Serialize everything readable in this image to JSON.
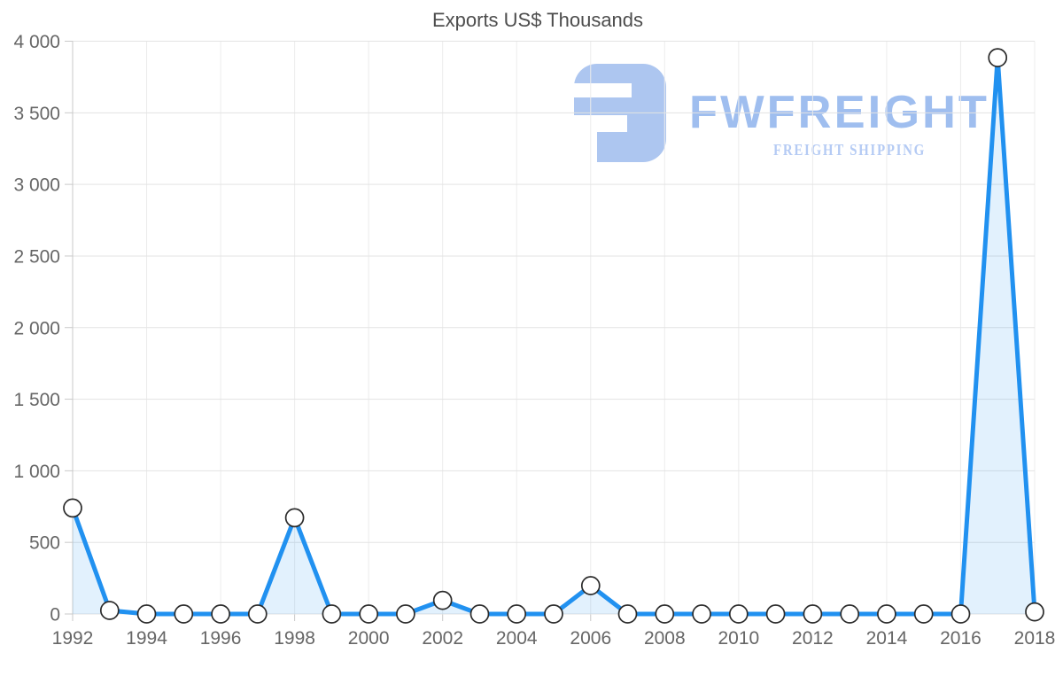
{
  "watermark": {
    "brand": "FWFREIGHT",
    "tagline": "FREIGHT SHIPPING",
    "glyph_color": "#adc6f0",
    "brand_color": "#9fbeef",
    "tagline_color": "#b5cbf4"
  },
  "chart_data": {
    "type": "area",
    "title": "Exports US$ Thousands",
    "xlabel": "",
    "ylabel": "",
    "x_range": [
      1992,
      2018
    ],
    "y_range": [
      0,
      4000
    ],
    "grid": true,
    "legend": "none",
    "x": [
      1992,
      1993,
      1994,
      1995,
      1996,
      1997,
      1998,
      1999,
      2000,
      2001,
      2002,
      2003,
      2004,
      2005,
      2006,
      2007,
      2008,
      2009,
      2010,
      2011,
      2012,
      2013,
      2014,
      2015,
      2016,
      2017,
      2018
    ],
    "values": [
      740,
      25,
      0,
      0,
      0,
      0,
      672,
      0,
      0,
      0,
      95,
      0,
      0,
      0,
      198,
      0,
      0,
      0,
      0,
      0,
      0,
      0,
      0,
      0,
      0,
      3885,
      15
    ],
    "x_tick_years": [
      1992,
      1994,
      1996,
      1998,
      2000,
      2002,
      2004,
      2006,
      2008,
      2010,
      2012,
      2014,
      2016,
      2018
    ],
    "y_tick_values": [
      0,
      500,
      1000,
      1500,
      2000,
      2500,
      3000,
      3500,
      4000
    ],
    "y_tick_labels": [
      "0",
      "500",
      "1 000",
      "1 500",
      "2 000",
      "2 500",
      "3 000",
      "3 500",
      "4 000"
    ],
    "colors": {
      "line": "#2191f0",
      "fill": "rgba(33, 145, 240, 0.13)",
      "marker_fill": "#ffffff",
      "marker_stroke": "#2b2b2b",
      "grid_horizontal": "#e3e3e3",
      "grid_vertical": "#ececec",
      "axis": "#c9c9c9",
      "tick_text": "#666666",
      "title_text": "#4d4d4d"
    }
  }
}
